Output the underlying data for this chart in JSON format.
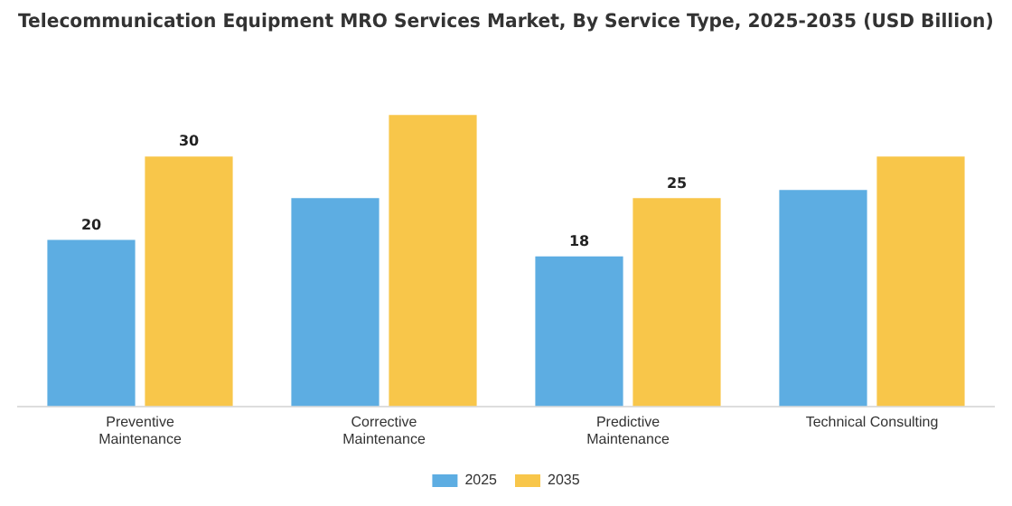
{
  "chart_data": {
    "type": "bar",
    "title": "Telecommunication Equipment MRO Services Market, By Service Type, 2025-2035 (USD Billion)",
    "categories": [
      "Preventive\nMaintenance",
      "Corrective\nMaintenance",
      "Predictive\nMaintenance",
      "Technical Consulting"
    ],
    "series": [
      {
        "name": "2025",
        "color": "#5dade2",
        "values": [
          20,
          25,
          18,
          26
        ],
        "value_labels": [
          "20",
          null,
          "18",
          null
        ]
      },
      {
        "name": "2035",
        "color": "#f8c64a",
        "values": [
          30,
          35,
          25,
          30
        ],
        "value_labels": [
          "30",
          null,
          "25",
          null
        ]
      }
    ],
    "tick_labels": "x",
    "legend": "bottom",
    "grid": false
  }
}
